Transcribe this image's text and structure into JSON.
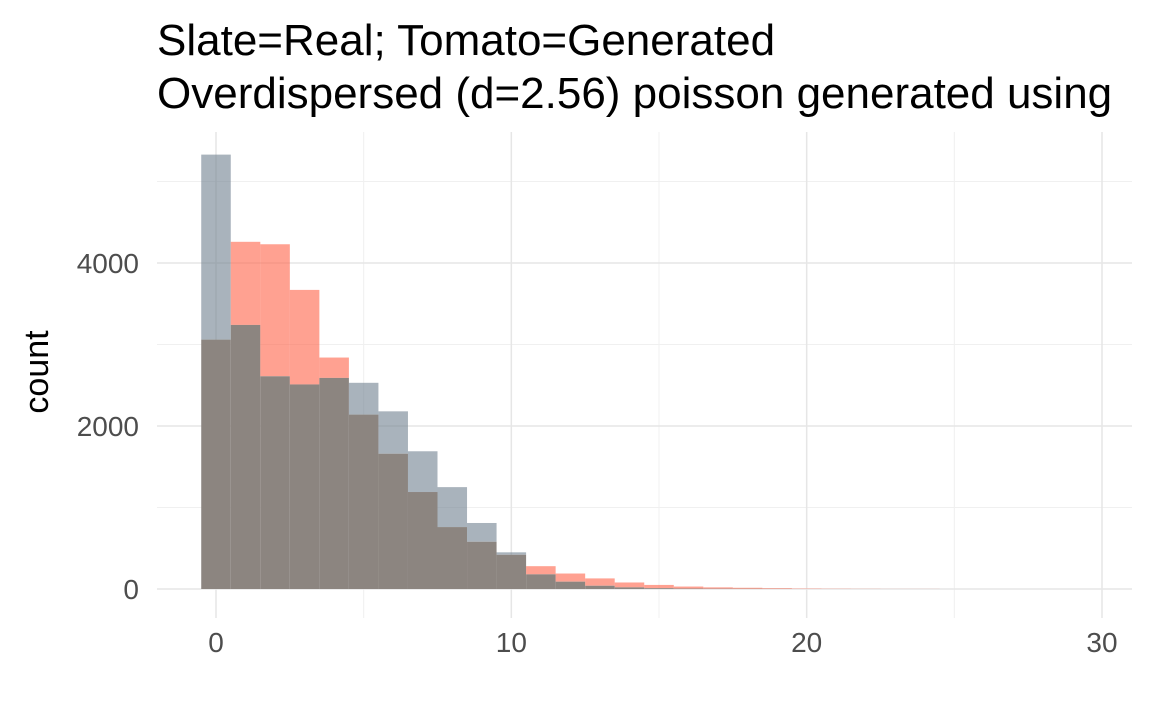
{
  "chart_data": {
    "type": "histogram",
    "title": "Slate=Real; Tomato=Generated",
    "subtitle": "Overdispersed (d=2.56) poisson generated using",
    "xlabel": "",
    "ylabel": "count",
    "xlim": [
      -2,
      31
    ],
    "ylim": [
      -150,
      5600
    ],
    "x_ticks": [
      0,
      10,
      20,
      30
    ],
    "y_ticks": [
      0,
      2000,
      4000
    ],
    "grid": true,
    "legend": "none",
    "bin_width": 1,
    "bins": [
      0,
      1,
      2,
      3,
      4,
      5,
      6,
      7,
      8,
      9,
      10,
      11,
      12,
      13,
      14,
      15,
      16,
      17,
      18,
      19,
      20,
      21,
      22,
      23,
      24,
      25,
      26,
      27,
      28,
      29
    ],
    "series": [
      {
        "color": "#708090",
        "values": [
          5330,
          3240,
          2610,
          2510,
          2590,
          2530,
          2180,
          1690,
          1250,
          810,
          450,
          180,
          90,
          40,
          20,
          10,
          5,
          3,
          2,
          1,
          0,
          0,
          0,
          0,
          0,
          0,
          0,
          0,
          0,
          0
        ]
      },
      {
        "color": "#FF6347",
        "values": [
          3060,
          4260,
          4230,
          3670,
          2840,
          2140,
          1660,
          1190,
          760,
          580,
          420,
          280,
          190,
          130,
          80,
          50,
          30,
          20,
          15,
          10,
          5,
          3,
          2,
          1,
          1,
          0,
          0,
          0,
          0,
          0
        ]
      }
    ],
    "overlap_color": "#8c8580"
  }
}
